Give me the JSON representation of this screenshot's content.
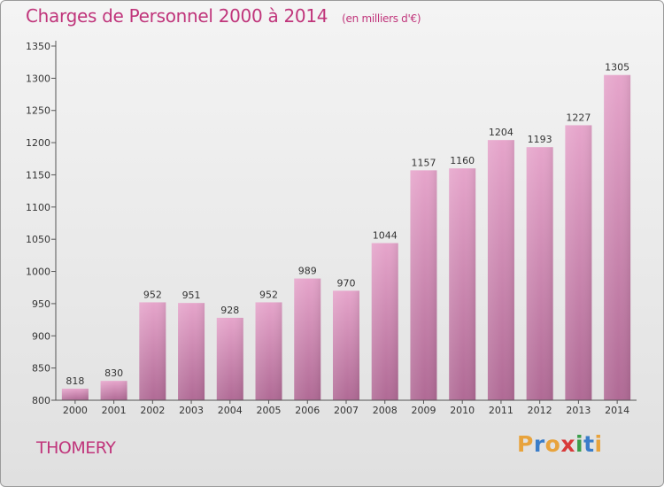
{
  "chart_data": {
    "type": "bar",
    "title": "Charges de Personnel 2000 à 2014",
    "subtitle": "(en milliers d'€)",
    "categories": [
      "2000",
      "2001",
      "2002",
      "2003",
      "2004",
      "2005",
      "2006",
      "2007",
      "2008",
      "2009",
      "2010",
      "2011",
      "2012",
      "2013",
      "2014"
    ],
    "values": [
      818,
      830,
      952,
      951,
      928,
      952,
      989,
      970,
      1044,
      1157,
      1160,
      1204,
      1193,
      1227,
      1305
    ],
    "ylim": [
      800,
      1350
    ],
    "yticks": [
      800,
      850,
      900,
      950,
      1000,
      1050,
      1100,
      1150,
      1200,
      1250,
      1300,
      1350
    ],
    "grid": false,
    "bar_color": "#c0357b"
  },
  "commune": "THOMERY",
  "logo": {
    "letters": [
      "P",
      "r",
      "o",
      "x",
      "i",
      "t",
      "i"
    ],
    "colors": [
      "#e8a33c",
      "#3a7dc9",
      "#e8a33c",
      "#d83a3a",
      "#3a9e4a",
      "#3a7dc9",
      "#e8a33c"
    ]
  }
}
